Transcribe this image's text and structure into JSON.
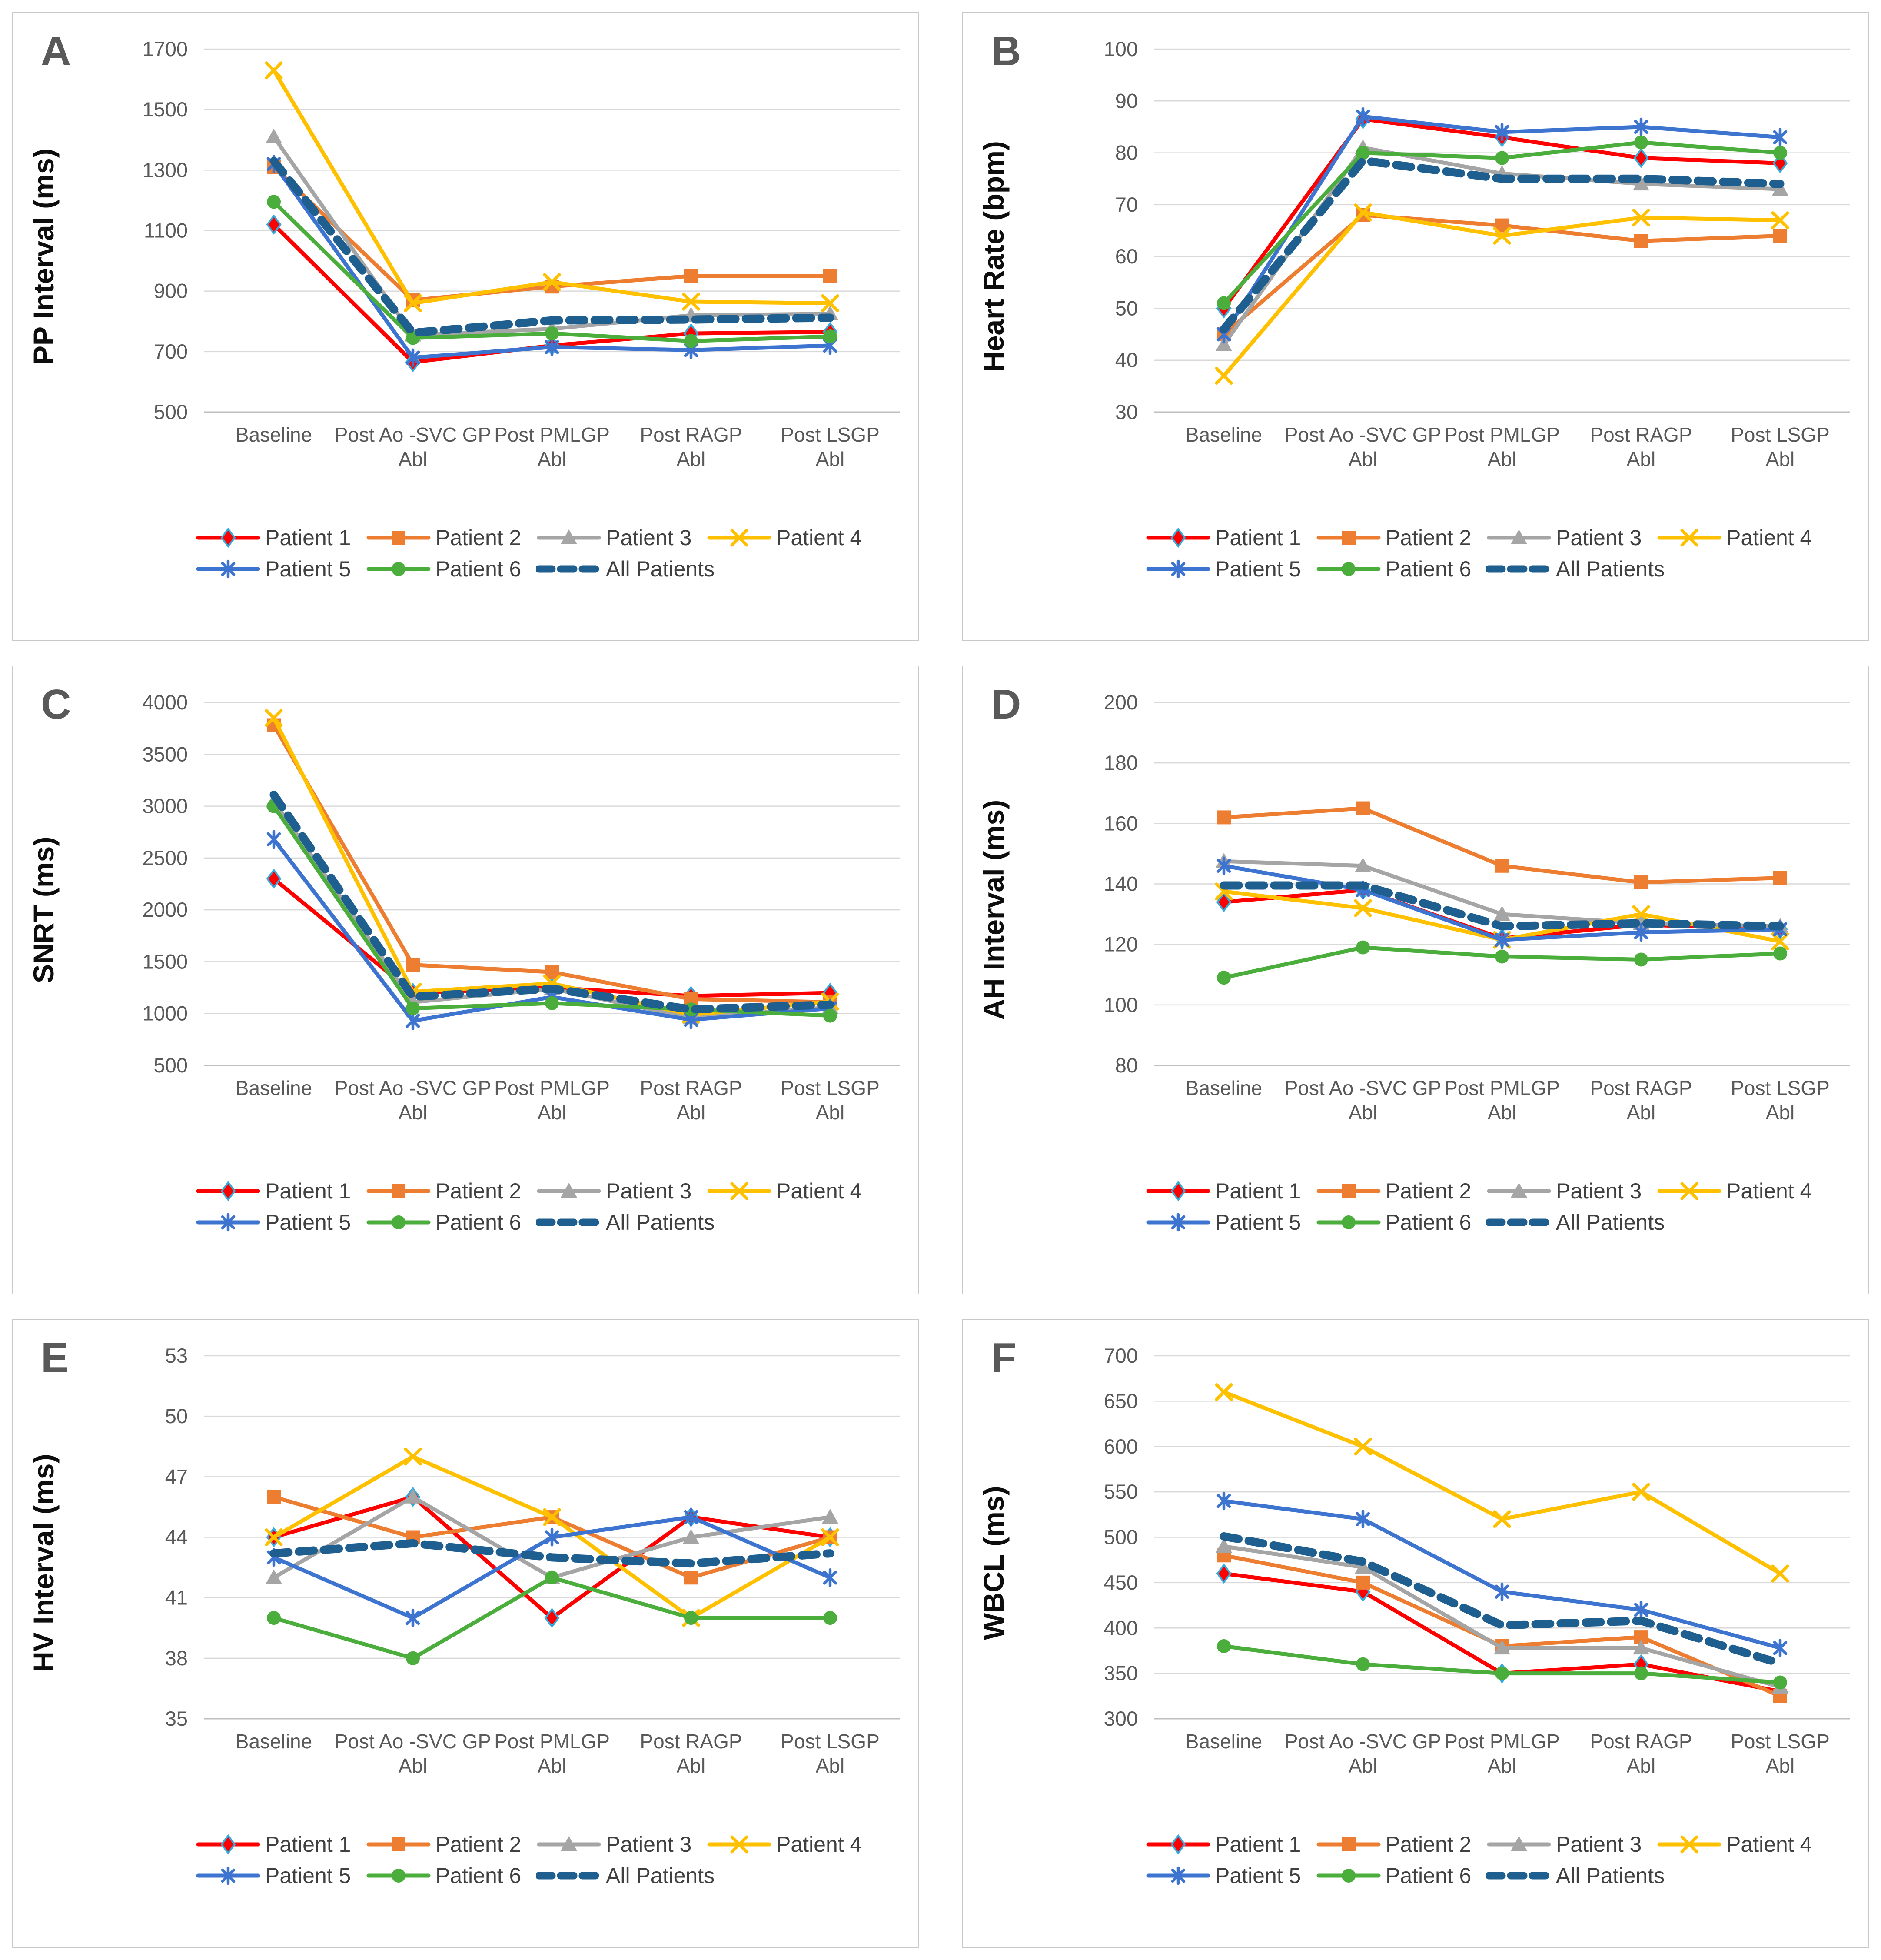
{
  "figure": {
    "description": "Six-panel line chart figure of electrophysiology parameters per patient across GP ablation stages",
    "panel_letters": [
      "A",
      "B",
      "C",
      "D",
      "E",
      "F"
    ]
  },
  "chart_data": {
    "type": "line",
    "categories": [
      "Baseline",
      "Post Ao  -SVC GP\nAbl",
      "Post PMLGP\nAbl",
      "Post RAGP\nAbl",
      "Post LSGP\nAbl"
    ],
    "legend_rows": [
      [
        "Patient 1",
        "Patient 2",
        "Patient 3",
        "Patient 4"
      ],
      [
        "Patient 5",
        "Patient 6",
        "All Patients"
      ]
    ],
    "series_style": [
      {
        "name": "Patient 1",
        "color": "#FF0000",
        "marker": "diamond",
        "marker_stroke": "#35AADC",
        "dashed": false
      },
      {
        "name": "Patient 2",
        "color": "#ED7D31",
        "marker": "square",
        "dashed": false
      },
      {
        "name": "Patient 3",
        "color": "#A5A5A5",
        "marker": "triangle",
        "dashed": false
      },
      {
        "name": "Patient 4",
        "color": "#FFC000",
        "marker": "x",
        "dashed": false
      },
      {
        "name": "Patient 5",
        "color": "#3D74D0",
        "marker": "asterisk",
        "dashed": false
      },
      {
        "name": "Patient 6",
        "color": "#4BAE3C",
        "marker": "circle",
        "dashed": false
      },
      {
        "name": "All Patients",
        "color": "#1F5F8F",
        "marker": "dash",
        "dashed": true
      }
    ],
    "grid_color": "#D9D9D9",
    "axis_color": "#BFBFBF",
    "charts": [
      {
        "panel": "A",
        "ylabel": "PP Interval (ms)",
        "ylim": [
          500,
          1700
        ],
        "ystep": 200,
        "series": [
          {
            "name": "Patient 1",
            "values": [
              1120,
              665,
              720,
              760,
              765
            ]
          },
          {
            "name": "Patient 2",
            "values": [
              1310,
              870,
              915,
              950,
              950
            ]
          },
          {
            "name": "Patient 3",
            "values": [
              1410,
              755,
              775,
              820,
              825
            ]
          },
          {
            "name": "Patient 4",
            "values": [
              1630,
              860,
              930,
              865,
              860
            ]
          },
          {
            "name": "Patient 5",
            "values": [
              1320,
              680,
              715,
              705,
              720
            ]
          },
          {
            "name": "Patient 6",
            "values": [
              1195,
              745,
              760,
              735,
              750
            ]
          },
          {
            "name": "All Patients",
            "values": [
              1330,
              762,
              803,
              806,
              812
            ]
          }
        ]
      },
      {
        "panel": "B",
        "ylabel": "Heart Rate (bpm)",
        "ylim": [
          30,
          100
        ],
        "ystep": 10,
        "series": [
          {
            "name": "Patient 1",
            "values": [
              50,
              86.5,
              83,
              79,
              78
            ]
          },
          {
            "name": "Patient 2",
            "values": [
              45,
              68,
              66,
              63,
              64
            ]
          },
          {
            "name": "Patient 3",
            "values": [
              43,
              81,
              76,
              74,
              73
            ]
          },
          {
            "name": "Patient 4",
            "values": [
              37,
              68.5,
              64,
              67.5,
              67
            ]
          },
          {
            "name": "Patient 5",
            "values": [
              45,
              87,
              84,
              85,
              83
            ]
          },
          {
            "name": "Patient 6",
            "values": [
              51,
              80,
              79,
              82,
              80
            ]
          },
          {
            "name": "All Patients",
            "values": [
              46,
              78.5,
              75,
              75,
              74
            ]
          }
        ]
      },
      {
        "panel": "C",
        "ylabel": "SNRT (ms)",
        "ylim": [
          500,
          4000
        ],
        "ystep": 500,
        "series": [
          {
            "name": "Patient 1",
            "values": [
              2300,
              1200,
              1250,
              1170,
              1200
            ]
          },
          {
            "name": "Patient 2",
            "values": [
              3780,
              1470,
              1400,
              1140,
              1110
            ]
          },
          {
            "name": "Patient 3",
            "values": [
              3050,
              1110,
              1240,
              960,
              1060
            ]
          },
          {
            "name": "Patient 4",
            "values": [
              3850,
              1210,
              1290,
              990,
              1115
            ]
          },
          {
            "name": "Patient 5",
            "values": [
              2680,
              930,
              1160,
              940,
              1050
            ]
          },
          {
            "name": "Patient 6",
            "values": [
              3000,
              1050,
              1100,
              1040,
              980
            ]
          },
          {
            "name": "All Patients",
            "values": [
              3110,
              1162,
              1240,
              1040,
              1086
            ]
          }
        ]
      },
      {
        "panel": "D",
        "ylabel": "AH Interval (ms)",
        "ylim": [
          80,
          200
        ],
        "ystep": 20,
        "series": [
          {
            "name": "Patient 1",
            "values": [
              134,
              138,
              122,
              126.5,
              125
            ]
          },
          {
            "name": "Patient 2",
            "values": [
              162,
              165,
              146,
              140.5,
              142
            ]
          },
          {
            "name": "Patient 3",
            "values": [
              147.5,
              146,
              130,
              127,
              126
            ]
          },
          {
            "name": "Patient 4",
            "values": [
              137.5,
              132,
              121.5,
              130,
              121
            ]
          },
          {
            "name": "Patient 5",
            "values": [
              146,
              138,
              121.5,
              124,
              125
            ]
          },
          {
            "name": "Patient 6",
            "values": [
              109,
              119,
              116,
              115,
              117
            ]
          },
          {
            "name": "All Patients",
            "values": [
              139.5,
              139.5,
              126,
              127,
              126
            ]
          }
        ]
      },
      {
        "panel": "E",
        "ylabel": "HV Interval (ms)",
        "ylim": [
          35,
          53
        ],
        "ystep": 3,
        "series": [
          {
            "name": "Patient 1",
            "values": [
              44,
              46,
              40,
              45,
              44
            ]
          },
          {
            "name": "Patient 2",
            "values": [
              46,
              44,
              45,
              42,
              44
            ]
          },
          {
            "name": "Patient 3",
            "values": [
              42,
              46,
              42,
              44,
              45
            ]
          },
          {
            "name": "Patient 4",
            "values": [
              44,
              48,
              45,
              40,
              44
            ]
          },
          {
            "name": "Patient 5",
            "values": [
              43,
              40,
              44,
              45,
              42
            ]
          },
          {
            "name": "Patient 6",
            "values": [
              40,
              38,
              42,
              40,
              40
            ]
          },
          {
            "name": "All Patients",
            "values": [
              43.2,
              43.7,
              43,
              42.7,
              43.2
            ]
          }
        ]
      },
      {
        "panel": "F",
        "ylabel": "WBCL (ms)",
        "ylim": [
          300,
          700
        ],
        "ystep": 50,
        "series": [
          {
            "name": "Patient 1",
            "values": [
              460,
              440,
              350,
              360,
              330
            ]
          },
          {
            "name": "Patient 2",
            "values": [
              480,
              450,
              380,
              390,
              325
            ]
          },
          {
            "name": "Patient 3",
            "values": [
              490,
              467,
              378,
              378,
              335
            ]
          },
          {
            "name": "Patient 4",
            "values": [
              660,
              600,
              520,
              550,
              460
            ]
          },
          {
            "name": "Patient 5",
            "values": [
              540,
              520,
              440,
              420,
              378
            ]
          },
          {
            "name": "Patient 6",
            "values": [
              380,
              360,
              350,
              350,
              340
            ]
          },
          {
            "name": "All Patients",
            "values": [
              501,
              473,
              403,
              408,
              361
            ]
          }
        ]
      }
    ]
  }
}
